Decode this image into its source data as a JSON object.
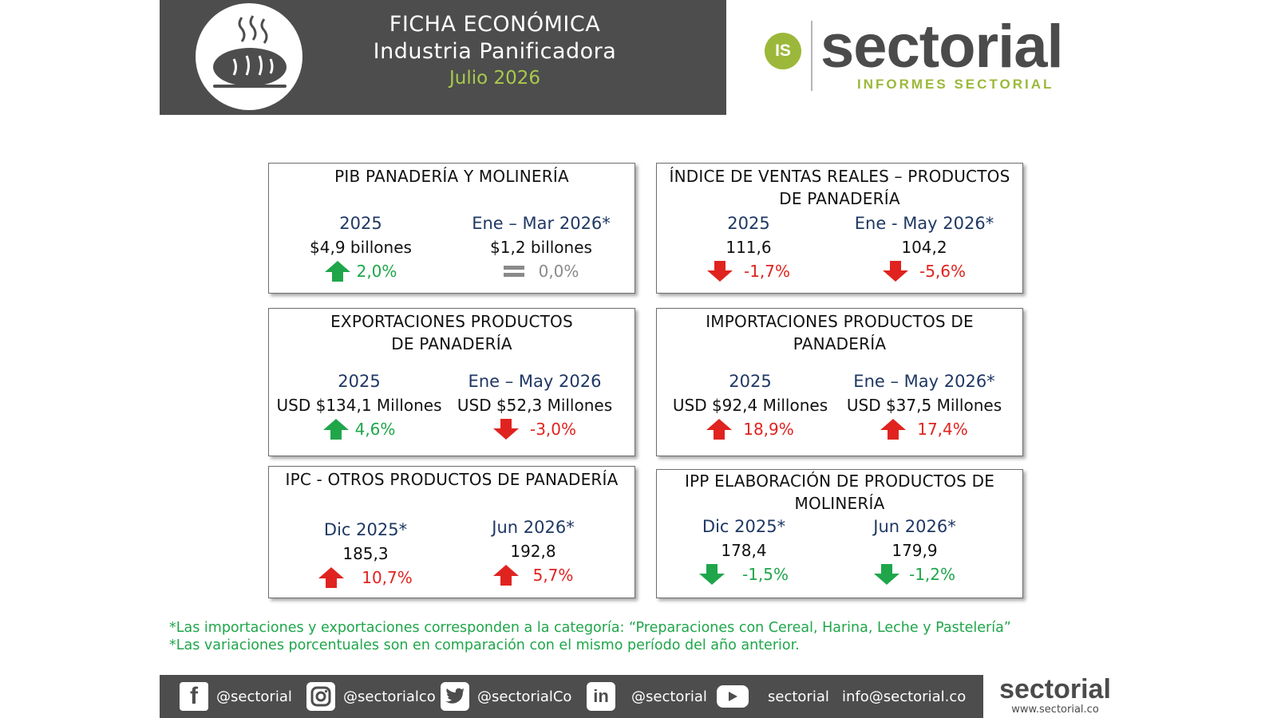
{
  "header": {
    "title": "FICHA ECONÓMICA",
    "subtitle": "Industria Panificadora",
    "date": "Julio 2026"
  },
  "logo": {
    "badge": "IS",
    "word": "sectorial",
    "sub": "INFORMES SECTORIAL"
  },
  "cards": [
    {
      "title": "PIB PANADERÍA Y MOLINERÍA",
      "cols": [
        {
          "period": "2025",
          "value": "$4,9 billones",
          "variation": "2,0%",
          "trend": "up-green"
        },
        {
          "period": "Ene – Mar 2026*",
          "value": "$1,2 billones",
          "variation": "0,0%",
          "trend": "equal"
        }
      ]
    },
    {
      "title": "ÍNDICE DE VENTAS REALES – PRODUCTOS DE PANADERÍA",
      "cols": [
        {
          "period": "2025",
          "value": "111,6",
          "variation": "-1,7%",
          "trend": "down-red"
        },
        {
          "period": "Ene - May 2026*",
          "value": "104,2",
          "variation": "-5,6%",
          "trend": "down-red"
        }
      ]
    },
    {
      "title": "EXPORTACIONES PRODUCTOS DE PANADERÍA",
      "cols": [
        {
          "period": "2025",
          "value": "USD $134,1  Millones",
          "variation": "4,6%",
          "trend": "up-green"
        },
        {
          "period": "Ene – May 2026",
          "value": "USD $52,3 Millones",
          "variation": "-3,0%",
          "trend": "down-red"
        }
      ]
    },
    {
      "title": "IMPORTACIONES PRODUCTOS DE PANADERÍA",
      "cols": [
        {
          "period": "2025",
          "value": "USD $92,4 Millones",
          "variation": "18,9%",
          "trend": "up-red"
        },
        {
          "period": "Ene – May 2026*",
          "value": "USD $37,5 Millones",
          "variation": "17,4%",
          "trend": "up-red"
        }
      ]
    },
    {
      "title": "IPC - OTROS PRODUCTOS DE PANADERÍA",
      "cols": [
        {
          "period": "Dic 2025*",
          "value": "185,3",
          "variation": "10,7%",
          "trend": "up-red"
        },
        {
          "period": "Jun 2026*",
          "value": "192,8",
          "variation": "5,7%",
          "trend": "up-red"
        }
      ]
    },
    {
      "title": "IPP ELABORACIÓN DE PRODUCTOS DE MOLINERÍA",
      "cols": [
        {
          "period": "Dic 2025*",
          "value": "178,4",
          "variation": "-1,5%",
          "trend": "down-green"
        },
        {
          "period": "Jun 2026*",
          "value": "179,9",
          "variation": "-1,2%",
          "trend": "down-green"
        }
      ]
    }
  ],
  "notes": {
    "line1": "*Las importaciones y exportaciones corresponden a la categoría: “Preparaciones con Cereal, Harina, Leche y Pastelería”",
    "line2": "*Las variaciones porcentuales son en comparación con el mismo período del año anterior."
  },
  "footer": {
    "facebook": "@sectorial",
    "instagram": "@sectorialco",
    "twitter": "@sectorialCo",
    "linkedin": "@sectorial",
    "youtube": "sectorial",
    "email": "info@sectorial.co",
    "logo_word": "sectorial",
    "logo_url": "www.sectorial.co"
  },
  "colors": {
    "header_bg": "#4d4d4d",
    "accent_green": "#9cb83a",
    "up_green": "#1fa64a",
    "down_red": "#e0231f",
    "period_blue": "#1f3864"
  },
  "icons": {
    "up-green": "arrow-up-icon",
    "down-red": "arrow-down-icon",
    "up-red": "arrow-up-icon",
    "down-green": "arrow-down-icon",
    "equal": "equal-icon"
  }
}
